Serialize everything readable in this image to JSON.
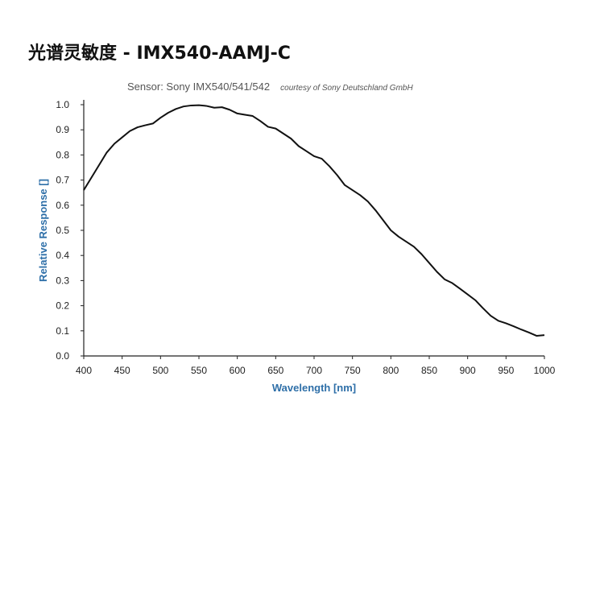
{
  "header": {
    "title": "光谱灵敏度 - IMX540-AAMJ-C"
  },
  "chart_data": {
    "type": "line",
    "subtitle": "Sensor: Sony IMX540/541/542",
    "credit": "courtesy of Sony Deutschland GmbH",
    "xlabel": "Wavelength [nm]",
    "ylabel": "Relative Response []",
    "xlim": [
      400,
      1000
    ],
    "ylim": [
      0.0,
      1.0
    ],
    "x_ticks": [
      "400",
      "450",
      "500",
      "550",
      "600",
      "650",
      "700",
      "750",
      "800",
      "850",
      "900",
      "950",
      "1000"
    ],
    "y_ticks": [
      "0.0",
      "0.1",
      "0.2",
      "0.3",
      "0.4",
      "0.5",
      "0.6",
      "0.7",
      "0.8",
      "0.9",
      "1.0"
    ],
    "grid": false,
    "legend": "none",
    "colors": {
      "line": "#111111",
      "axis_title": "#2e6fa8",
      "axis": "#222222"
    },
    "series": [
      {
        "x": [
          400,
          410,
          420,
          430,
          440,
          450,
          460,
          470,
          480,
          490,
          500,
          510,
          520,
          530,
          540,
          550,
          560,
          570,
          580,
          590,
          600,
          610,
          620,
          630,
          640,
          650,
          660,
          670,
          680,
          690,
          700,
          710,
          720,
          730,
          740,
          750,
          760,
          770,
          780,
          790,
          800,
          810,
          820,
          830,
          840,
          850,
          860,
          870,
          880,
          890,
          900,
          910,
          920,
          930,
          940,
          950,
          960,
          970,
          980,
          990,
          1000
        ],
        "values": [
          0.66,
          0.71,
          0.76,
          0.81,
          0.845,
          0.87,
          0.895,
          0.91,
          0.918,
          0.925,
          0.948,
          0.968,
          0.983,
          0.993,
          0.997,
          0.998,
          0.995,
          0.988,
          0.99,
          0.98,
          0.965,
          0.96,
          0.955,
          0.935,
          0.912,
          0.905,
          0.885,
          0.865,
          0.835,
          0.815,
          0.795,
          0.785,
          0.755,
          0.72,
          0.68,
          0.66,
          0.64,
          0.615,
          0.58,
          0.54,
          0.5,
          0.475,
          0.455,
          0.435,
          0.405,
          0.37,
          0.335,
          0.305,
          0.29,
          0.268,
          0.245,
          0.222,
          0.19,
          0.16,
          0.14,
          0.13,
          0.118,
          0.105,
          0.093,
          0.08,
          0.083
        ]
      }
    ]
  }
}
